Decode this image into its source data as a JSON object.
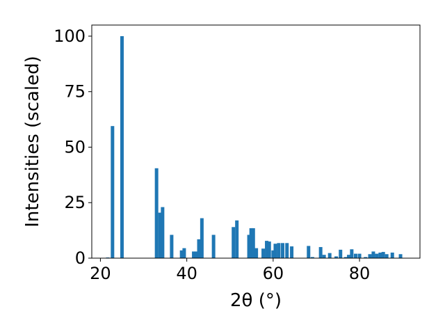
{
  "chart_data": {
    "type": "bar",
    "xlabel": "2θ (°)",
    "ylabel": "Intensities (scaled)",
    "xlim": [
      18,
      94
    ],
    "ylim": [
      0,
      105
    ],
    "xticks": [
      20,
      40,
      60,
      80
    ],
    "yticks": [
      0,
      25,
      50,
      75,
      100
    ],
    "bar_color": "#1f77b4",
    "grid": false,
    "x": [
      21.7,
      22.8,
      25.0,
      33.0,
      33.8,
      34.4,
      36.5,
      38.8,
      39.4,
      41.6,
      42.2,
      42.8,
      43.5,
      46.2,
      50.8,
      51.6,
      54.4,
      54.9,
      55.4,
      56.1,
      57.7,
      58.5,
      59.1,
      60.0,
      60.5,
      61.3,
      62.2,
      63.2,
      64.3,
      68.2,
      69.1,
      71.0,
      71.8,
      73.1,
      74.6,
      75.6,
      76.8,
      77.5,
      78.2,
      79.1,
      80.0,
      81.4,
      82.4,
      83.2,
      84.0,
      84.8,
      85.5,
      86.3,
      87.6,
      89.5
    ],
    "values": [
      0.3,
      59.5,
      100.0,
      40.5,
      20.5,
      23.0,
      10.5,
      3.5,
      4.5,
      3.0,
      3.0,
      8.5,
      18.0,
      10.5,
      14.0,
      17.0,
      10.5,
      13.5,
      13.5,
      4.5,
      4.3,
      7.8,
      7.5,
      3.5,
      6.5,
      6.8,
      6.8,
      6.8,
      5.3,
      5.5,
      0.5,
      5.0,
      1.5,
      2.3,
      0.8,
      3.8,
      0.5,
      1.5,
      4.0,
      2.0,
      2.0,
      0.5,
      1.8,
      3.0,
      2.0,
      2.5,
      2.8,
      1.8,
      2.5,
      1.8
    ]
  }
}
